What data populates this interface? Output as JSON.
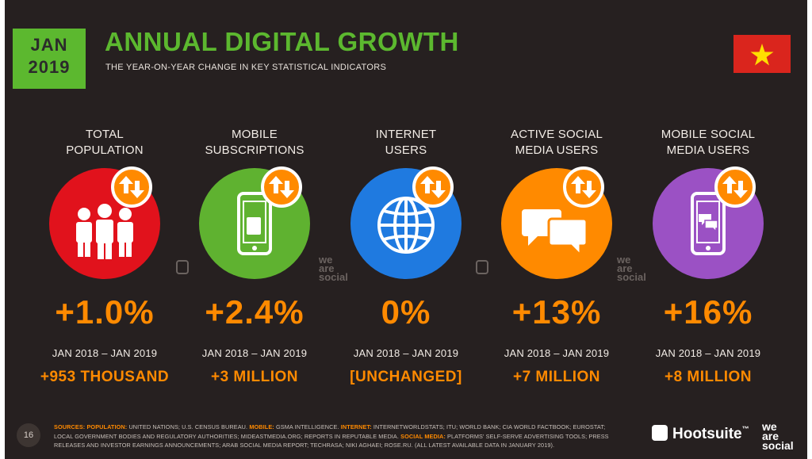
{
  "header": {
    "badge_month": "JAN",
    "badge_year": "2019",
    "title": "ANNUAL DIGITAL GROWTH",
    "subtitle": "THE YEAR-ON-YEAR CHANGE IN KEY STATISTICAL INDICATORS",
    "flag": "vietnam-flag"
  },
  "colors": {
    "green": "#5cb82f",
    "orange": "#ff8a00",
    "red": "#e1121c",
    "lime": "#5fb230",
    "blue": "#1f7ae0",
    "amber": "#ff8a00",
    "purple": "#9b51c4",
    "background": "#262020"
  },
  "metrics": [
    {
      "label_1": "TOTAL",
      "label_2": "POPULATION",
      "icon": "people-icon",
      "color": "#e1121c",
      "change": "+1.0%",
      "period": "JAN 2018 – JAN 2019",
      "absolute": "+953 THOUSAND"
    },
    {
      "label_1": "MOBILE",
      "label_2": "SUBSCRIPTIONS",
      "icon": "mobile-sim-icon",
      "color": "#5fb230",
      "change": "+2.4%",
      "period": "JAN 2018 – JAN 2019",
      "absolute": "+3 MILLION"
    },
    {
      "label_1": "INTERNET",
      "label_2": "USERS",
      "icon": "globe-icon",
      "color": "#1f7ae0",
      "change": "0%",
      "period": "JAN 2018 – JAN 2019",
      "absolute": "[UNCHANGED]"
    },
    {
      "label_1": "ACTIVE SOCIAL",
      "label_2": "MEDIA USERS",
      "icon": "chat-bubbles-icon",
      "color": "#ff8a00",
      "change": "+13%",
      "period": "JAN 2018 – JAN 2019",
      "absolute": "+7 MILLION"
    },
    {
      "label_1": "MOBILE SOCIAL",
      "label_2": "MEDIA USERS",
      "icon": "mobile-chat-icon",
      "color": "#9b51c4",
      "change": "+16%",
      "period": "JAN 2018 – JAN 2019",
      "absolute": "+8 MILLION"
    }
  ],
  "watermark": {
    "line1": "we",
    "line2": "are",
    "line3": "social"
  },
  "footer": {
    "page_number": "16",
    "sources_key": "SOURCES:",
    "population_key": "POPULATION:",
    "population_text": "UNITED NATIONS; U.S. CENSUS BUREAU.",
    "mobile_key": "MOBILE:",
    "mobile_text": "GSMA INTELLIGENCE.",
    "internet_key": "INTERNET:",
    "internet_text": "INTERNETWORLDSTATS; ITU; WORLD BANK; CIA WORLD FACTBOOK; EUROSTAT; LOCAL GOVERNMENT BODIES AND REGULATORY AUTHORITIES; MIDEASTMEDIA.ORG; REPORTS IN REPUTABLE MEDIA.",
    "social_key": "SOCIAL MEDIA:",
    "social_text": "PLATFORMS' SELF-SERVE ADVERTISING TOOLS; PRESS RELEASES AND INVESTOR EARNINGS ANNOUNCEMENTS; ARAB SOCIAL MEDIA REPORT; TECHRASA; NIKI AGHAEI; ROSE.RU. (ALL LATEST AVAILABLE DATA IN JANUARY 2019).",
    "hootsuite": "Hootsuite",
    "tm": "™",
    "was_1": "we",
    "was_2": "are",
    "was_3": "social"
  }
}
